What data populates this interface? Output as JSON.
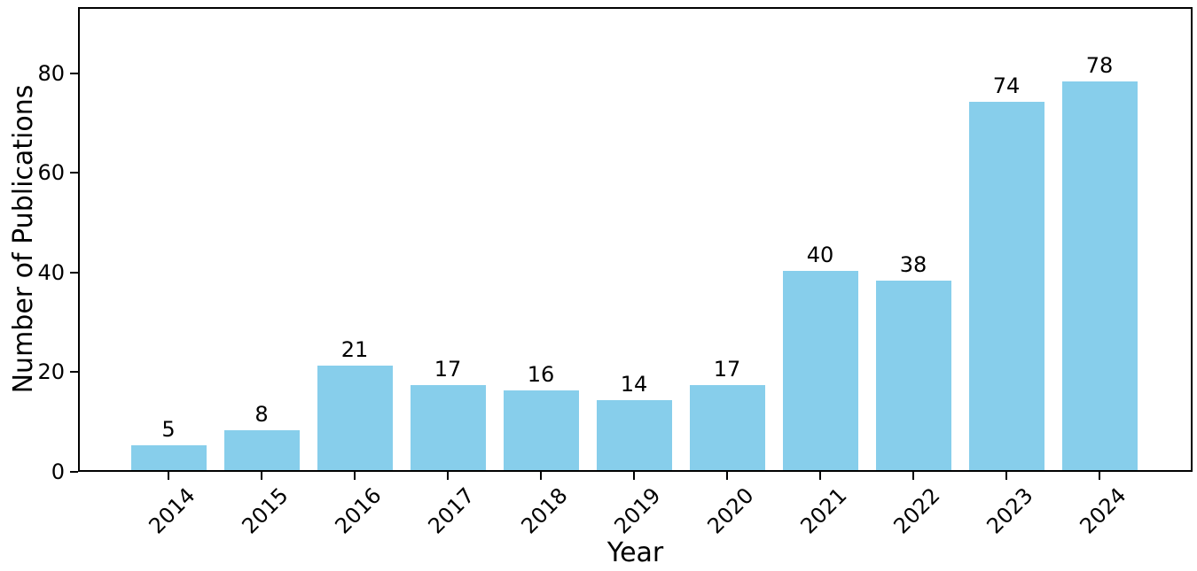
{
  "figure": {
    "background": "#ffffff",
    "axis_color": "#000000",
    "text_color": "#000000"
  },
  "chart_data": {
    "type": "bar",
    "title": "",
    "xlabel": "Year",
    "ylabel": "Number of Publications",
    "categories": [
      "2014",
      "2015",
      "2016",
      "2017",
      "2018",
      "2019",
      "2020",
      "2021",
      "2022",
      "2023",
      "2024"
    ],
    "values": [
      5,
      8,
      21,
      17,
      16,
      14,
      17,
      40,
      38,
      74,
      78
    ],
    "bar_color": "#87CEEB",
    "value_labels_shown": true,
    "yticks": [
      0,
      20,
      40,
      60,
      80
    ],
    "ylim": [
      0,
      93.3
    ],
    "grid": false,
    "legend": "none",
    "x_tick_rotation_deg": 45,
    "frame": "full-box"
  }
}
